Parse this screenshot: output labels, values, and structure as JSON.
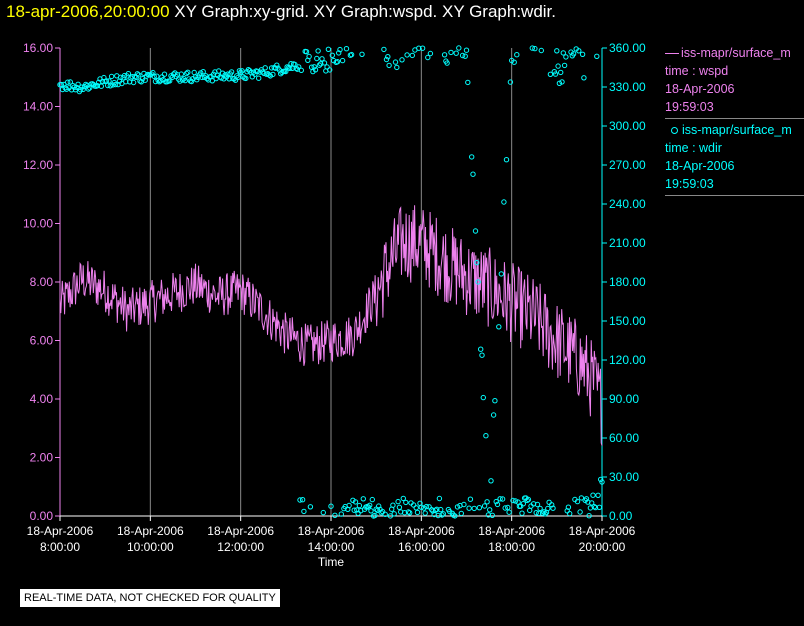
{
  "header": {
    "timestamp": "18-apr-2006,20:00:00",
    "graphs": "XY Graph:xy-grid.  XY Graph:wspd.  XY Graph:wdir."
  },
  "legend": [
    {
      "name": "iss-mapr/surface_m",
      "line1": "time : wspd",
      "line2": "18-Apr-2006",
      "line3": "19:59:03",
      "color": "#ee82ee",
      "marker": "line"
    },
    {
      "name": "iss-mapr/surface_m",
      "line1": "time : wdir",
      "line2": "18-Apr-2006",
      "line3": "19:59:03",
      "color": "#00ffff",
      "marker": "circle"
    }
  ],
  "footer": {
    "qc_notice": "REAL-TIME DATA, NOT CHECKED FOR QUALITY"
  },
  "chart_data": {
    "type": "line",
    "xlabel": "Time",
    "x_range": [
      "18-Apr-2006 8:00:00",
      "18-Apr-2006 20:00:00"
    ],
    "x_ticks": [
      {
        "date": "18-Apr-2006",
        "time": "8:00:00"
      },
      {
        "date": "18-Apr-2006",
        "time": "10:00:00"
      },
      {
        "date": "18-Apr-2006",
        "time": "12:00:00"
      },
      {
        "date": "18-Apr-2006",
        "time": "14:00:00"
      },
      {
        "date": "18-Apr-2006",
        "time": "16:00:00"
      },
      {
        "date": "18-Apr-2006",
        "time": "18:00:00"
      },
      {
        "date": "18-Apr-2006",
        "time": "20:00:00"
      }
    ],
    "y_left": {
      "ylim": [
        0,
        16
      ],
      "ticks": [
        "0.00",
        "2.00",
        "4.00",
        "6.00",
        "8.00",
        "10.00",
        "12.00",
        "14.00",
        "16.00"
      ],
      "color": "#ee82ee"
    },
    "y_right": {
      "ylim": [
        0,
        360
      ],
      "ticks": [
        "0.00",
        "30.00",
        "60.00",
        "90.00",
        "120.00",
        "150.00",
        "180.00",
        "210.00",
        "240.00",
        "270.00",
        "300.00",
        "330.00",
        "360.00"
      ],
      "color": "#00ffff"
    },
    "grid": "vertical",
    "series": [
      {
        "name": "time : wspd",
        "axis": "left",
        "color": "#ee82ee",
        "style": "line",
        "x_hours": [
          8.0,
          8.5,
          9.0,
          9.5,
          10.0,
          10.5,
          11.0,
          11.5,
          12.0,
          12.5,
          13.0,
          13.5,
          14.0,
          14.5,
          15.0,
          15.3,
          15.6,
          16.0,
          16.3,
          16.6,
          17.0,
          17.5,
          18.0,
          18.5,
          19.0,
          19.5,
          19.8,
          20.0
        ],
        "values": [
          7.2,
          8.1,
          7.7,
          7.0,
          7.3,
          7.6,
          7.9,
          7.5,
          7.7,
          7.0,
          6.2,
          5.8,
          6.0,
          6.2,
          7.6,
          8.6,
          9.4,
          9.3,
          9.0,
          8.6,
          8.2,
          7.8,
          7.3,
          6.8,
          6.0,
          5.3,
          4.6,
          3.8
        ]
      },
      {
        "name": "time : wdir",
        "axis": "right",
        "color": "#00ffff",
        "style": "scatter",
        "x_hours": [
          8.0,
          8.5,
          9.0,
          9.5,
          10.0,
          11.0,
          12.0,
          12.5,
          13.0,
          13.5,
          14.0,
          14.5,
          15.0,
          15.5,
          16.0,
          16.5,
          17.0,
          17.5,
          18.0,
          18.5,
          19.0,
          19.5,
          20.0
        ],
        "values": [
          332,
          330,
          334,
          337,
          338,
          338,
          339,
          341,
          345,
          349,
          351,
          5,
          359,
          352,
          2,
          356,
          3,
          3,
          356,
          7,
          351,
          349,
          15
        ]
      }
    ]
  }
}
